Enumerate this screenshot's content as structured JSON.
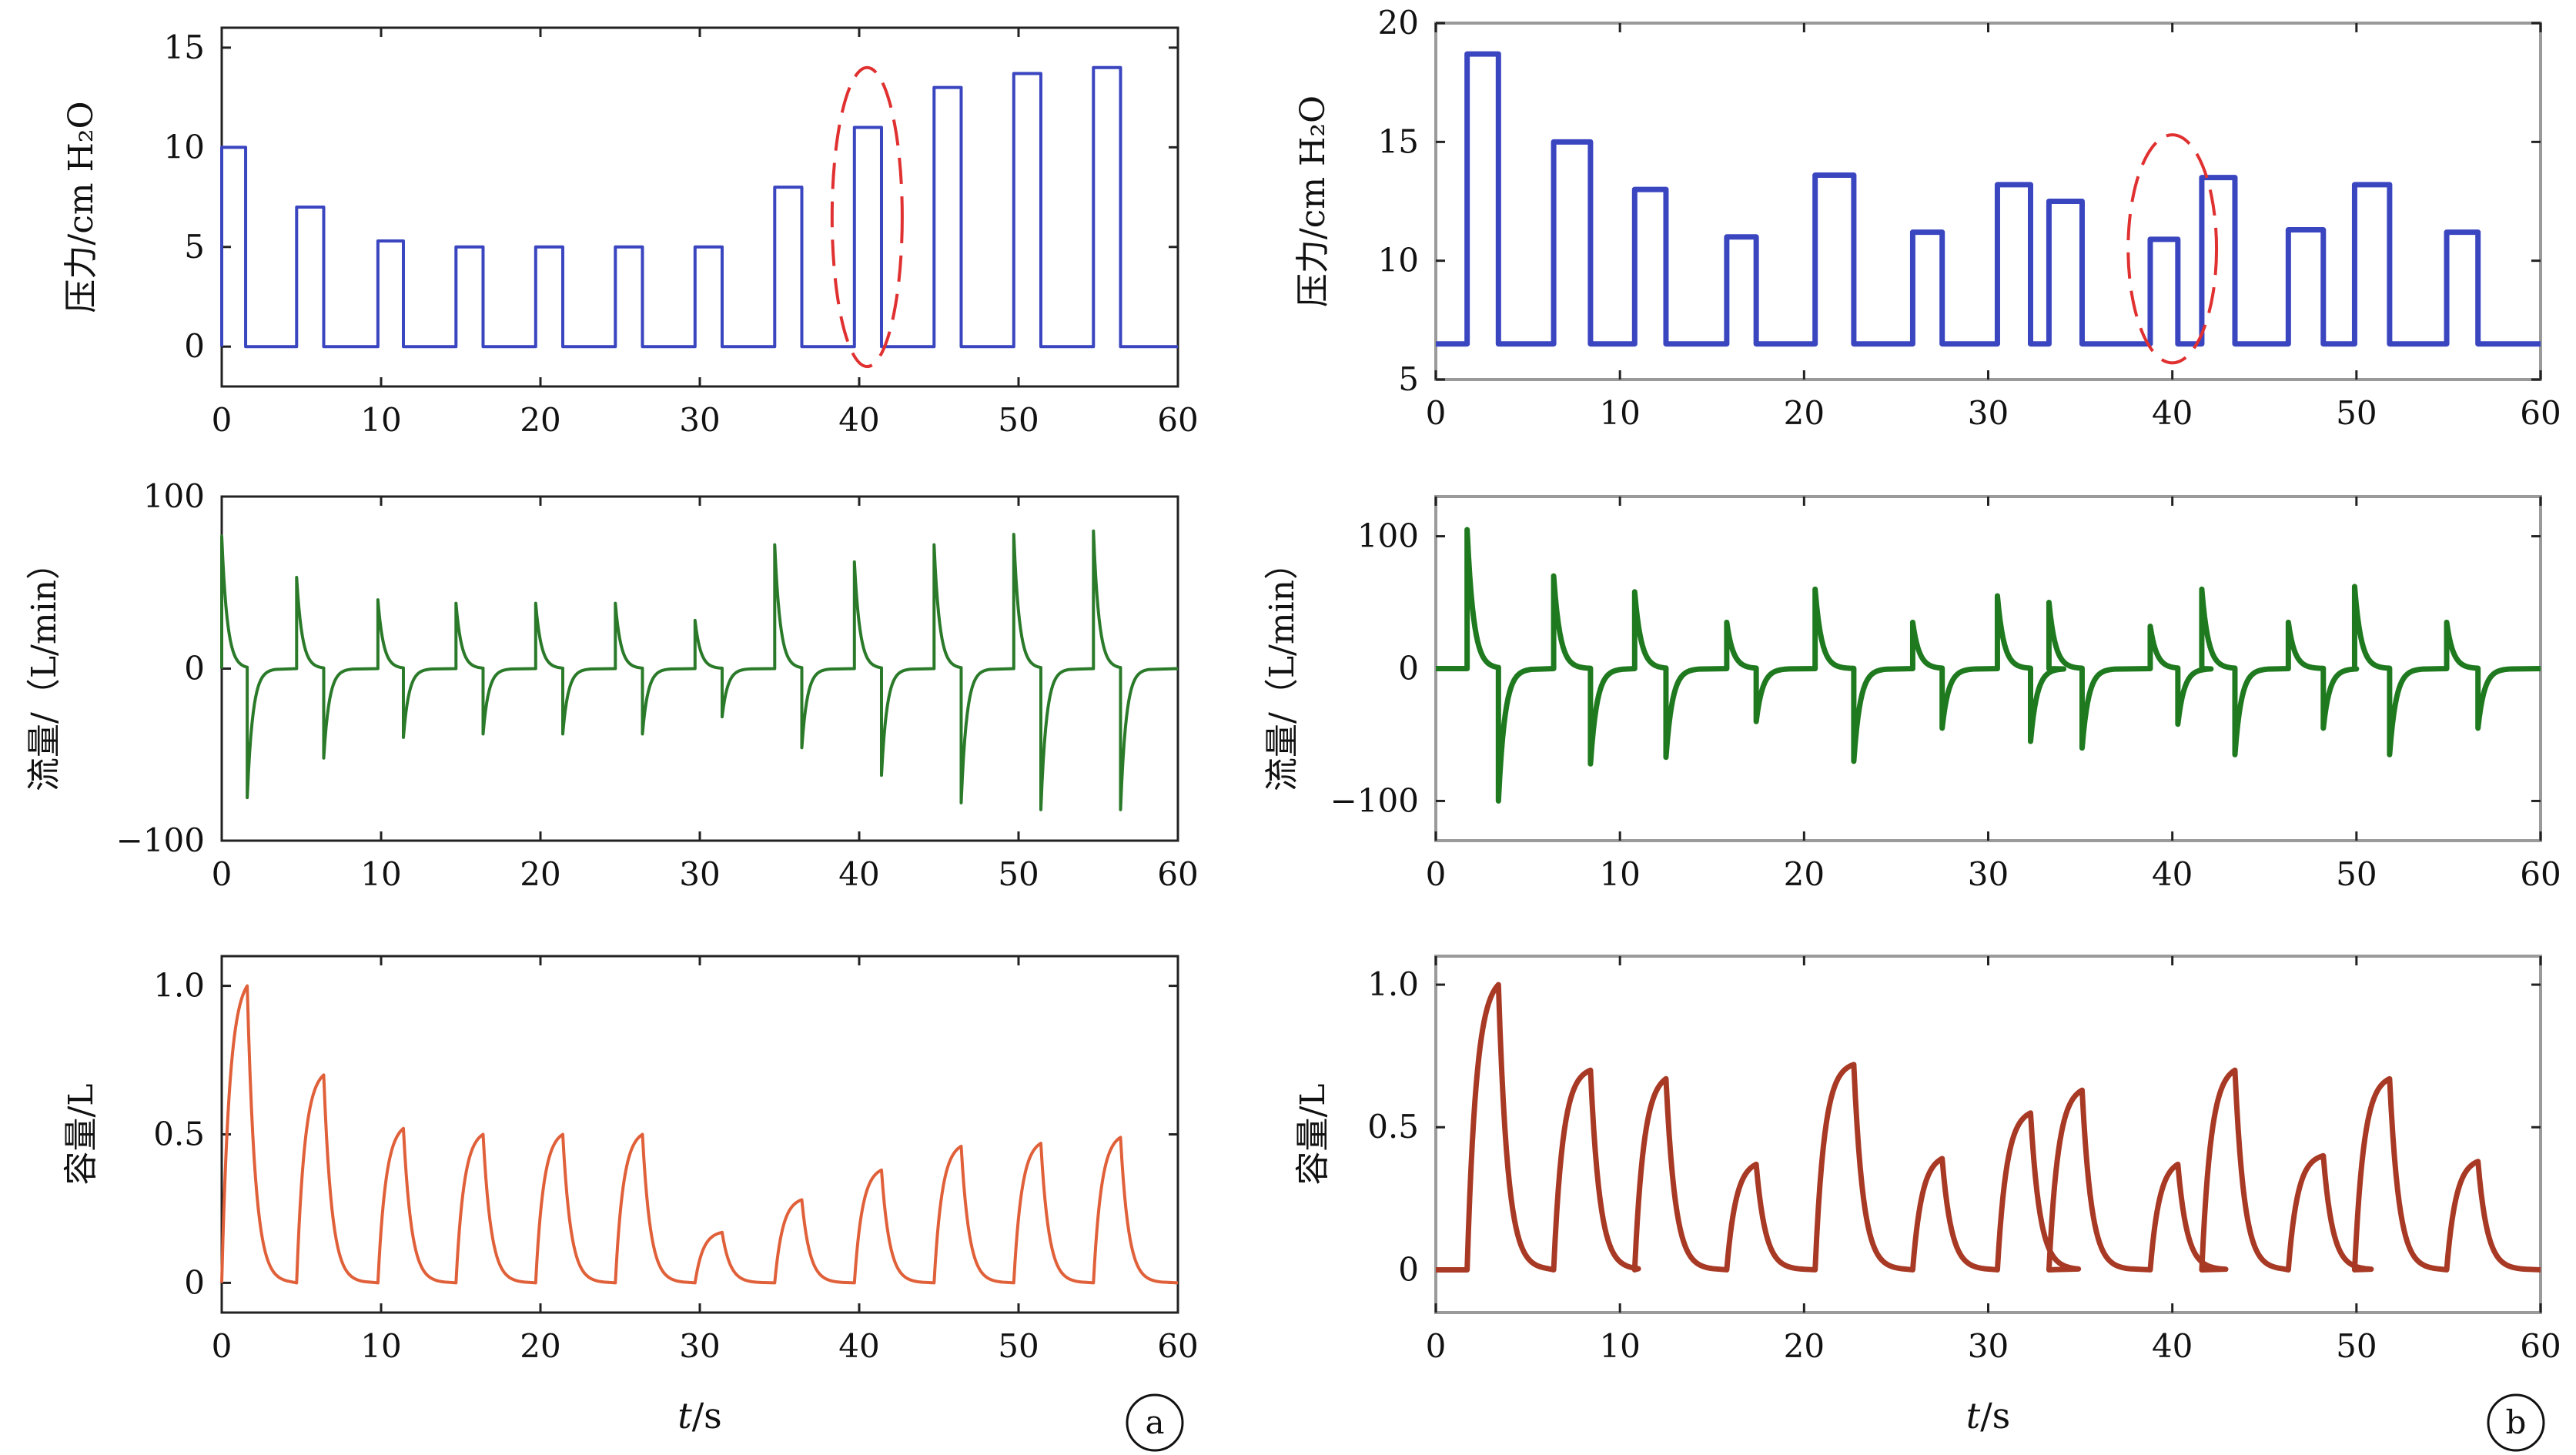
{
  "chart_data": [
    {
      "type": "line",
      "panel": "a",
      "row": 0,
      "ylabel": "压力/cm H₂O",
      "xlabel": "",
      "xlim": [
        0,
        60
      ],
      "ylim": [
        -2,
        16
      ],
      "xticks": [
        "0",
        "10",
        "20",
        "30",
        "40",
        "50",
        "60"
      ],
      "yticks": [
        {
          "v": 0,
          "t": "0"
        },
        {
          "v": 5,
          "t": "5"
        },
        {
          "v": 10,
          "t": "10"
        },
        {
          "v": 15,
          "t": "15"
        }
      ],
      "color": "#3a45c0",
      "kind": "pressure",
      "baseline": 0,
      "pulses": [
        [
          0,
          1.5,
          10
        ],
        [
          4.7,
          6.4,
          7
        ],
        [
          9.8,
          11.4,
          5.3
        ],
        [
          14.7,
          16.4,
          5
        ],
        [
          19.7,
          21.4,
          5
        ],
        [
          24.7,
          26.4,
          5
        ],
        [
          29.7,
          31.4,
          5
        ],
        [
          34.7,
          36.4,
          8
        ],
        [
          39.7,
          41.4,
          11
        ],
        [
          44.7,
          46.4,
          13
        ],
        [
          49.7,
          51.4,
          13.7
        ],
        [
          54.7,
          56.4,
          14
        ]
      ],
      "annotation": {
        "cx": 40.5,
        "cy": 6.5,
        "rx": 2.2,
        "ry": 7.5,
        "color": "#e03030"
      }
    },
    {
      "type": "line",
      "panel": "b",
      "row": 0,
      "ylabel": "压力/cm H₂O",
      "xlabel": "",
      "xlim": [
        0,
        60
      ],
      "ylim": [
        5,
        20
      ],
      "xticks": [
        "0",
        "10",
        "20",
        "30",
        "40",
        "50",
        "60"
      ],
      "yticks": [
        {
          "v": 5,
          "t": "5"
        },
        {
          "v": 10,
          "t": "10"
        },
        {
          "v": 15,
          "t": "15"
        },
        {
          "v": 20,
          "t": "20"
        }
      ],
      "color": "#3a45c0",
      "kind": "pressure",
      "baseline": 6.5,
      "pulses": [
        [
          1.7,
          3.4,
          18.7
        ],
        [
          6.4,
          8.4,
          15
        ],
        [
          10.8,
          12.5,
          13
        ],
        [
          15.8,
          17.4,
          11
        ],
        [
          20.6,
          22.7,
          13.6
        ],
        [
          25.9,
          27.5,
          11.2
        ],
        [
          30.5,
          32.3,
          13.2
        ],
        [
          33.3,
          35.1,
          12.5
        ],
        [
          38.8,
          40.3,
          10.9
        ],
        [
          41.6,
          43.4,
          13.5
        ],
        [
          46.3,
          48.2,
          11.3
        ],
        [
          49.9,
          51.8,
          13.2
        ],
        [
          54.9,
          56.6,
          11.2
        ]
      ],
      "annotation": {
        "cx": 40,
        "cy": 10.5,
        "rx": 2.4,
        "ry": 4.8,
        "color": "#e03030"
      }
    },
    {
      "type": "line",
      "panel": "a",
      "row": 1,
      "ylabel": "流量/（L/min）",
      "xlabel": "",
      "xlim": [
        0,
        60
      ],
      "ylim": [
        -100,
        100
      ],
      "xticks": [
        "0",
        "10",
        "20",
        "30",
        "40",
        "50",
        "60"
      ],
      "yticks": [
        {
          "v": -100,
          "t": "−100"
        },
        {
          "v": 0,
          "t": "0"
        },
        {
          "v": 100,
          "t": "100"
        }
      ],
      "color": "#2a7a2a",
      "kind": "flow",
      "events": [
        [
          0,
          77,
          1.6,
          -75
        ],
        [
          4.7,
          53,
          6.4,
          -52
        ],
        [
          9.8,
          40,
          11.4,
          -40
        ],
        [
          14.7,
          38,
          16.4,
          -38
        ],
        [
          19.7,
          38,
          21.4,
          -38
        ],
        [
          24.7,
          38,
          26.4,
          -38
        ],
        [
          29.7,
          28,
          31.4,
          -28
        ],
        [
          34.7,
          72,
          36.4,
          -46
        ],
        [
          39.7,
          62,
          41.4,
          -62
        ],
        [
          44.7,
          72,
          46.4,
          -78
        ],
        [
          49.7,
          78,
          51.4,
          -82
        ],
        [
          54.7,
          80,
          56.4,
          -82
        ]
      ]
    },
    {
      "type": "line",
      "panel": "b",
      "row": 1,
      "ylabel": "流量/（L/min）",
      "xlabel": "",
      "xlim": [
        0,
        60
      ],
      "ylim": [
        -130,
        130
      ],
      "xticks": [
        "0",
        "10",
        "20",
        "30",
        "40",
        "50",
        "60"
      ],
      "yticks": [
        {
          "v": -100,
          "t": "−100"
        },
        {
          "v": 0,
          "t": "0"
        },
        {
          "v": 100,
          "t": "100"
        }
      ],
      "color": "#1f7a1f",
      "kind": "flow",
      "events": [
        [
          1.7,
          105,
          3.4,
          -100
        ],
        [
          6.4,
          70,
          8.4,
          -72
        ],
        [
          10.8,
          58,
          12.5,
          -67
        ],
        [
          15.8,
          35,
          17.4,
          -40
        ],
        [
          20.6,
          60,
          22.7,
          -70
        ],
        [
          25.9,
          35,
          27.5,
          -45
        ],
        [
          30.5,
          55,
          32.3,
          -55
        ],
        [
          33.3,
          50,
          35.1,
          -60
        ],
        [
          38.8,
          32,
          40.3,
          -42
        ],
        [
          41.6,
          60,
          43.4,
          -65
        ],
        [
          46.3,
          35,
          48.2,
          -45
        ],
        [
          49.9,
          62,
          51.8,
          -65
        ],
        [
          54.9,
          35,
          56.6,
          -45
        ]
      ]
    },
    {
      "type": "line",
      "panel": "a",
      "row": 2,
      "ylabel": "容量/L",
      "xlabel": "t/s",
      "xlim": [
        0,
        60
      ],
      "ylim": [
        -0.1,
        1.1
      ],
      "xticks": [
        "0",
        "10",
        "20",
        "30",
        "40",
        "50",
        "60"
      ],
      "yticks": [
        {
          "v": 0,
          "t": "0"
        },
        {
          "v": 0.5,
          "t": "0.5"
        },
        {
          "v": 1.0,
          "t": "1.0"
        }
      ],
      "color": "#e0603a",
      "kind": "volume",
      "pulses": [
        [
          0,
          1.6,
          1.0
        ],
        [
          4.7,
          6.4,
          0.7
        ],
        [
          9.8,
          11.4,
          0.52
        ],
        [
          14.7,
          16.4,
          0.5
        ],
        [
          19.7,
          21.4,
          0.5
        ],
        [
          24.7,
          26.4,
          0.5
        ],
        [
          29.7,
          31.4,
          0.17
        ],
        [
          34.7,
          36.4,
          0.28
        ],
        [
          39.7,
          41.4,
          0.38
        ],
        [
          44.7,
          46.4,
          0.46
        ],
        [
          49.7,
          51.4,
          0.47
        ],
        [
          54.7,
          56.4,
          0.49
        ]
      ],
      "tag": "a"
    },
    {
      "type": "line",
      "panel": "b",
      "row": 2,
      "ylabel": "容量/L",
      "xlabel": "t/s",
      "xlim": [
        0,
        60
      ],
      "ylim": [
        -0.15,
        1.1
      ],
      "xticks": [
        "0",
        "10",
        "20",
        "30",
        "40",
        "50",
        "60"
      ],
      "yticks": [
        {
          "v": 0,
          "t": "0"
        },
        {
          "v": 0.5,
          "t": "0.5"
        },
        {
          "v": 1.0,
          "t": "1.0"
        }
      ],
      "color": "#a83a25",
      "kind": "volume",
      "pulses": [
        [
          1.7,
          3.4,
          1.0
        ],
        [
          6.4,
          8.4,
          0.7
        ],
        [
          10.8,
          12.5,
          0.67
        ],
        [
          15.8,
          17.4,
          0.37
        ],
        [
          20.6,
          22.7,
          0.72
        ],
        [
          25.9,
          27.5,
          0.39
        ],
        [
          30.5,
          32.3,
          0.55
        ],
        [
          33.3,
          35.1,
          0.63
        ],
        [
          38.8,
          40.3,
          0.37
        ],
        [
          41.6,
          43.4,
          0.7
        ],
        [
          46.3,
          48.2,
          0.4
        ],
        [
          49.9,
          51.8,
          0.67
        ],
        [
          54.9,
          56.6,
          0.38
        ]
      ],
      "tag": "b"
    }
  ]
}
